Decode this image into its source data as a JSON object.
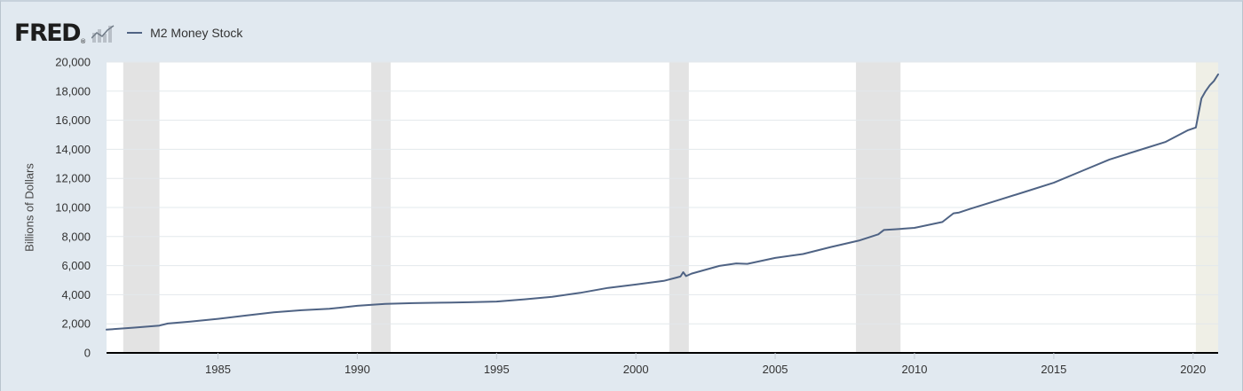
{
  "header": {
    "logo_text": "FRED",
    "logo_mark": "®",
    "logo_icon": "fred-sparkline-icon"
  },
  "colors": {
    "series": "#4f6384",
    "recession": "#e3e3e3",
    "recession_current": "#efefe6",
    "plot_bg": "#ffffff",
    "gridline": "#e3e8ec",
    "axis": "#000000"
  },
  "chart_data": {
    "type": "line",
    "xlabel": "",
    "ylabel": "Billions of Dollars",
    "xlim": [
      1981.0,
      2020.9
    ],
    "ylim": [
      0,
      20000
    ],
    "yticks": [
      0,
      2000,
      4000,
      6000,
      8000,
      10000,
      12000,
      14000,
      16000,
      18000,
      20000
    ],
    "ytick_labels": [
      "0",
      "2,000",
      "4,000",
      "6,000",
      "8,000",
      "10,000",
      "12,000",
      "14,000",
      "16,000",
      "18,000",
      "20,000"
    ],
    "xticks": [
      1985,
      1990,
      1995,
      2000,
      2005,
      2010,
      2015,
      2020
    ],
    "xtick_labels": [
      "1985",
      "1990",
      "1995",
      "2000",
      "2005",
      "2010",
      "2015",
      "2020"
    ],
    "grid": true,
    "legend": "top-left",
    "recessions": [
      {
        "start": 1981.6,
        "end": 1982.9
      },
      {
        "start": 1990.5,
        "end": 1991.2
      },
      {
        "start": 2001.2,
        "end": 2001.9
      },
      {
        "start": 2007.9,
        "end": 2009.5
      },
      {
        "start": 2020.1,
        "end": 2020.9
      }
    ],
    "series": [
      {
        "name": "M2 Money Stock",
        "x": [
          1981.0,
          1982.0,
          1982.9,
          1983.2,
          1984.0,
          1985.0,
          1986.0,
          1987.0,
          1988.0,
          1989.0,
          1990.0,
          1991.0,
          1992.0,
          1993.0,
          1994.0,
          1995.0,
          1996.0,
          1997.0,
          1998.0,
          1999.0,
          2000.0,
          2001.0,
          2001.6,
          2001.7,
          2001.8,
          2002.0,
          2003.0,
          2003.6,
          2004.0,
          2005.0,
          2006.0,
          2007.0,
          2008.0,
          2008.7,
          2008.9,
          2009.3,
          2010.0,
          2011.0,
          2011.4,
          2011.6,
          2012.0,
          2013.0,
          2014.0,
          2015.0,
          2016.0,
          2017.0,
          2018.0,
          2019.0,
          2019.8,
          2020.1,
          2020.3,
          2020.45,
          2020.6,
          2020.75,
          2020.9
        ],
        "values": [
          1600,
          1740,
          1880,
          2020,
          2150,
          2340,
          2570,
          2790,
          2930,
          3030,
          3240,
          3370,
          3420,
          3450,
          3480,
          3530,
          3680,
          3860,
          4130,
          4470,
          4700,
          4950,
          5250,
          5550,
          5280,
          5450,
          5980,
          6150,
          6120,
          6530,
          6800,
          7280,
          7720,
          8150,
          8450,
          8500,
          8600,
          9000,
          9600,
          9650,
          9900,
          10500,
          11100,
          11700,
          12500,
          13300,
          13900,
          14500,
          15300,
          15500,
          17500,
          18000,
          18400,
          18700,
          19150
        ]
      }
    ]
  }
}
